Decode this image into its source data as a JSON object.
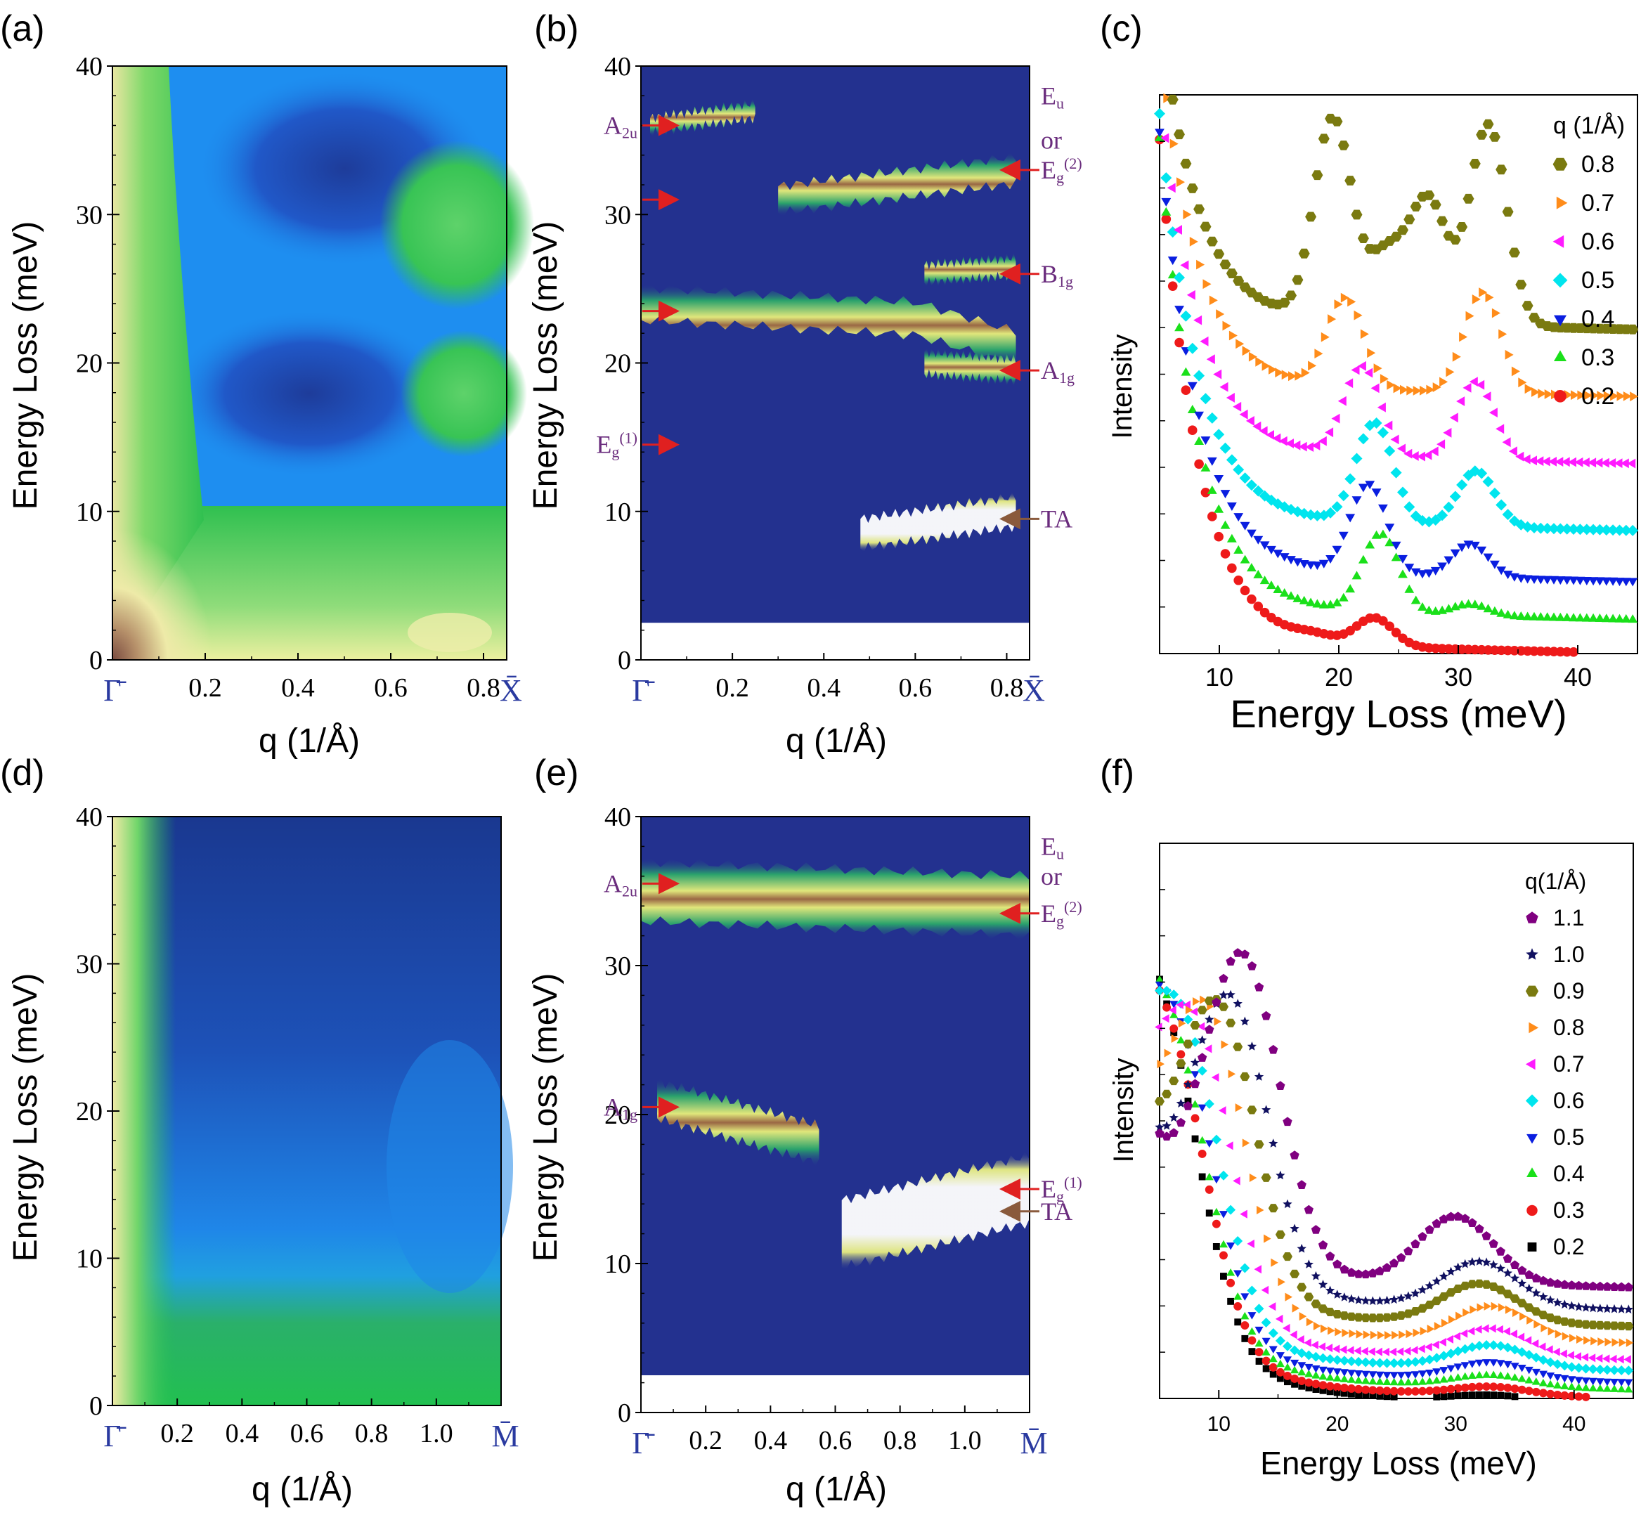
{
  "figure": {
    "panel_labels": [
      "(a)",
      "(b)",
      "(c)",
      "(d)",
      "(e)",
      "(f)"
    ],
    "y_axis_label": "Energy Loss (meV)",
    "x_axis_label": "q (1/Å)",
    "intensity_label": "Intensity",
    "energy_axis_label": "Energy Loss (meV)"
  },
  "chart_data": [
    {
      "panel": "(a)",
      "type": "heatmap",
      "xlabel": "q (1/Å)",
      "ylabel": "Energy Loss (meV)",
      "xlim": [
        0,
        0.85
      ],
      "ylim": [
        0,
        40
      ],
      "x_ticks": [
        "0.2",
        "0.4",
        "0.6",
        "0.8"
      ],
      "x_tick_values": [
        0.2,
        0.4,
        0.6,
        0.8
      ],
      "y_ticks": [
        "0",
        "10",
        "20",
        "30",
        "40"
      ],
      "y_tick_values": [
        0,
        10,
        20,
        30,
        40
      ],
      "start_point": "Γ̄",
      "end_point": "X̄",
      "colors": {
        "low": "#1a2a80",
        "mid": "#1e8ef0",
        "green": "#30c050",
        "yellow": "#f0f0a0",
        "high": "#8a5a4a"
      }
    },
    {
      "panel": "(b)",
      "type": "heatmap",
      "xlabel": "q (1/Å)",
      "ylabel": "Energy Loss (meV)",
      "xlim": [
        0,
        0.85
      ],
      "ylim": [
        0,
        40
      ],
      "x_ticks": [
        "0.2",
        "0.4",
        "0.6",
        "0.8"
      ],
      "x_tick_values": [
        0.2,
        0.4,
        0.6,
        0.8
      ],
      "y_ticks": [
        "0",
        "10",
        "20",
        "30",
        "40"
      ],
      "y_tick_values": [
        0,
        10,
        20,
        30,
        40
      ],
      "start_point": "Γ̄",
      "end_point": "X̄",
      "bands": [
        {
          "q": [
            0.0,
            0.6,
            0.82
          ],
          "E": [
            24,
            23,
            21
          ],
          "width": 2.2
        },
        {
          "q": [
            0.3,
            0.82
          ],
          "E": [
            31,
            33
          ],
          "width": 1.8
        },
        {
          "q": [
            0.62,
            0.82
          ],
          "E": [
            26,
            26.5
          ],
          "width": 1.2
        },
        {
          "q": [
            0.62,
            0.82
          ],
          "E": [
            20,
            19.5
          ],
          "width": 1.5
        },
        {
          "q": [
            0.02,
            0.25
          ],
          "E": [
            36,
            37
          ],
          "width": 1.0
        }
      ],
      "ta_branch": {
        "q": [
          0.48,
          0.82
        ],
        "E": [
          8.5,
          10
        ],
        "width": 2.0
      },
      "cutoff_meV": 2.5,
      "mode_labels": [
        {
          "base": "A",
          "sub": "2u",
          "sup": "",
          "energy": 36,
          "side": "left",
          "arrow": "red"
        },
        {
          "base": "",
          "sub": "",
          "sup": "",
          "energy": 31,
          "side": "left",
          "arrow": "red"
        },
        {
          "base": "",
          "sub": "",
          "sup": "",
          "energy": 23.5,
          "side": "left",
          "arrow": "red"
        },
        {
          "base": "E",
          "sub": "g",
          "sup": "(1)",
          "energy": 14.5,
          "side": "left",
          "arrow": "red"
        },
        {
          "base": "E",
          "sub": "u",
          "sup": "",
          "energy": 38,
          "side": "right",
          "arrow": "none"
        },
        {
          "base": "or",
          "sub": "",
          "sup": "",
          "energy": 35,
          "side": "right",
          "arrow": "none"
        },
        {
          "base": "E",
          "sub": "g",
          "sup": "(2)",
          "energy": 33,
          "side": "right",
          "arrow": "red"
        },
        {
          "base": "B",
          "sub": "1g",
          "sup": "",
          "energy": 26,
          "side": "right",
          "arrow": "red"
        },
        {
          "base": "A",
          "sub": "1g",
          "sup": "",
          "energy": 19.5,
          "side": "right",
          "arrow": "red"
        },
        {
          "base": "TA",
          "sub": "",
          "sup": "",
          "energy": 9.5,
          "side": "right",
          "arrow": "brown"
        }
      ]
    },
    {
      "panel": "(c)",
      "type": "scatter",
      "xlabel": "Energy Loss (meV)",
      "ylabel": "Intensity",
      "xlim": [
        5,
        45
      ],
      "x_ticks": [
        "10",
        "20",
        "30",
        "40"
      ],
      "x_tick_values": [
        10,
        20,
        30,
        40
      ],
      "legend_title": "q (1/Å)",
      "legend_position": "top-right",
      "series": [
        {
          "name": "0.8",
          "color": "#7a7a10",
          "marker": "hexagon",
          "offset": 0.6,
          "peaks": [
            [
              19.5,
              0.36
            ],
            [
              24,
              0.12
            ],
            [
              27.5,
              0.22
            ],
            [
              32.5,
              0.36
            ]
          ]
        },
        {
          "name": "0.7",
          "color": "#ff8c1a",
          "marker": "triangle-right",
          "offset": 0.48,
          "peaks": [
            [
              20.5,
              0.16
            ],
            [
              32,
              0.18
            ]
          ]
        },
        {
          "name": "0.6",
          "color": "#ff1aff",
          "marker": "triangle-left",
          "offset": 0.36,
          "peaks": [
            [
              22,
              0.16
            ],
            [
              31.5,
              0.14
            ]
          ]
        },
        {
          "name": "0.5",
          "color": "#00e5ee",
          "marker": "diamond",
          "offset": 0.24,
          "peaks": [
            [
              23,
              0.18
            ],
            [
              31.5,
              0.1
            ]
          ]
        },
        {
          "name": "0.4",
          "color": "#0a1ee0",
          "marker": "triangle-down",
          "offset": 0.15,
          "peaks": [
            [
              22.5,
              0.16
            ],
            [
              31,
              0.06
            ]
          ]
        },
        {
          "name": "0.3",
          "color": "#1ae01a",
          "marker": "triangle-up",
          "offset": 0.08,
          "peaks": [
            [
              23.5,
              0.14
            ],
            [
              31,
              0.02
            ]
          ]
        },
        {
          "name": "0.2",
          "color": "#ee1a1a",
          "marker": "circle",
          "offset": 0.02,
          "peaks": [
            [
              23,
              0.05
            ],
            [
              18,
              0.01
            ]
          ]
        }
      ]
    },
    {
      "panel": "(d)",
      "type": "heatmap",
      "xlabel": "q (1/Å)",
      "ylabel": "Energy Loss (meV)",
      "xlim": [
        0,
        1.2
      ],
      "ylim": [
        0,
        40
      ],
      "x_ticks": [
        "0.2",
        "0.4",
        "0.6",
        "0.8",
        "1.0"
      ],
      "x_tick_values": [
        0.2,
        0.4,
        0.6,
        0.8,
        1.0
      ],
      "y_ticks": [
        "0",
        "10",
        "20",
        "30",
        "40"
      ],
      "y_tick_values": [
        0,
        10,
        20,
        30,
        40
      ],
      "start_point": "Γ̄",
      "end_point": "M̄"
    },
    {
      "panel": "(e)",
      "type": "heatmap",
      "xlabel": "q (1/Å)",
      "ylabel": "Energy Loss (meV)",
      "xlim": [
        0,
        1.2
      ],
      "ylim": [
        0,
        40
      ],
      "x_ticks": [
        "0.2",
        "0.4",
        "0.6",
        "0.8",
        "1.0"
      ],
      "x_tick_values": [
        0.2,
        0.4,
        0.6,
        0.8,
        1.0
      ],
      "y_ticks": [
        "0",
        "10",
        "20",
        "30",
        "40"
      ],
      "y_tick_values": [
        0,
        10,
        20,
        30,
        40
      ],
      "start_point": "Γ̄",
      "end_point": "M̄",
      "bands": [
        {
          "q": [
            0.0,
            1.2
          ],
          "E": [
            35,
            34
          ],
          "width": 4.0
        },
        {
          "q": [
            0.05,
            0.55
          ],
          "E": [
            21,
            18
          ],
          "width": 2.5
        }
      ],
      "ta_branch": {
        "q": [
          0.62,
          1.2
        ],
        "E": [
          12,
          15
        ],
        "width": 4.5
      },
      "cutoff_meV": 2.5,
      "mode_labels": [
        {
          "base": "A",
          "sub": "2u",
          "sup": "",
          "energy": 35.5,
          "side": "left",
          "arrow": "red"
        },
        {
          "base": "A",
          "sub": "1g",
          "sup": "",
          "energy": 20.5,
          "side": "left",
          "arrow": "red"
        },
        {
          "base": "E",
          "sub": "u",
          "sup": "",
          "energy": 38,
          "side": "right",
          "arrow": "none"
        },
        {
          "base": "or",
          "sub": "",
          "sup": "",
          "energy": 36,
          "side": "right",
          "arrow": "none"
        },
        {
          "base": "E",
          "sub": "g",
          "sup": "(2)",
          "energy": 33.5,
          "side": "right",
          "arrow": "red"
        },
        {
          "base": "E",
          "sub": "g",
          "sup": "(1)",
          "energy": 15,
          "side": "right",
          "arrow": "red"
        },
        {
          "base": "TA",
          "sub": "",
          "sup": "",
          "energy": 13.5,
          "side": "right",
          "arrow": "brown"
        }
      ]
    },
    {
      "panel": "(f)",
      "type": "scatter",
      "xlabel": "Energy Loss (meV)",
      "ylabel": "Intensity",
      "xlim": [
        5,
        45
      ],
      "x_ticks": [
        "10",
        "20",
        "30",
        "40"
      ],
      "x_tick_values": [
        10,
        20,
        30,
        40
      ],
      "legend_title": "q(1/Å)",
      "legend_position": "top-right",
      "series": [
        {
          "name": "1.1",
          "color": "#800080",
          "marker": "pentagon",
          "offset": 0.22,
          "peaks": [
            [
              12,
              0.55
            ],
            [
              30,
              0.12
            ]
          ]
        },
        {
          "name": "1.0",
          "color": "#101060",
          "marker": "star",
          "offset": 0.18,
          "peaks": [
            [
              11,
              0.5
            ],
            [
              32,
              0.08
            ]
          ]
        },
        {
          "name": "0.9",
          "color": "#7a7a10",
          "marker": "hexagon",
          "offset": 0.15,
          "peaks": [
            [
              10,
              0.5
            ],
            [
              32,
              0.07
            ]
          ]
        },
        {
          "name": "0.8",
          "color": "#ff8c1a",
          "marker": "triangle-right",
          "offset": 0.12,
          "peaks": [
            [
              9,
              0.5
            ],
            [
              33,
              0.06
            ]
          ]
        },
        {
          "name": "0.7",
          "color": "#ff1aff",
          "marker": "triangle-left",
          "offset": 0.09,
          "peaks": [
            [
              8,
              0.48
            ],
            [
              33,
              0.05
            ]
          ]
        },
        {
          "name": "0.6",
          "color": "#00e5ee",
          "marker": "diamond",
          "offset": 0.07,
          "peaks": [
            [
              7,
              0.46
            ],
            [
              33,
              0.04
            ]
          ]
        },
        {
          "name": "0.5",
          "color": "#0a1ee0",
          "marker": "triangle-down",
          "offset": 0.05,
          "peaks": [
            [
              6.5,
              0.44
            ],
            [
              33,
              0.03
            ]
          ]
        },
        {
          "name": "0.4",
          "color": "#1ae01a",
          "marker": "triangle-up",
          "offset": 0.035,
          "peaks": [
            [
              6,
              0.42
            ],
            [
              33,
              0.02
            ]
          ]
        },
        {
          "name": "0.3",
          "color": "#ee1a1a",
          "marker": "circle",
          "offset": 0.02,
          "peaks": [
            [
              6,
              0.4
            ],
            [
              33,
              0.015
            ]
          ]
        },
        {
          "name": "0.2",
          "color": "#000000",
          "marker": "square",
          "offset": 0.01,
          "peaks": [
            [
              5.5,
              0.4
            ],
            [
              33,
              0.01
            ]
          ]
        }
      ]
    }
  ]
}
